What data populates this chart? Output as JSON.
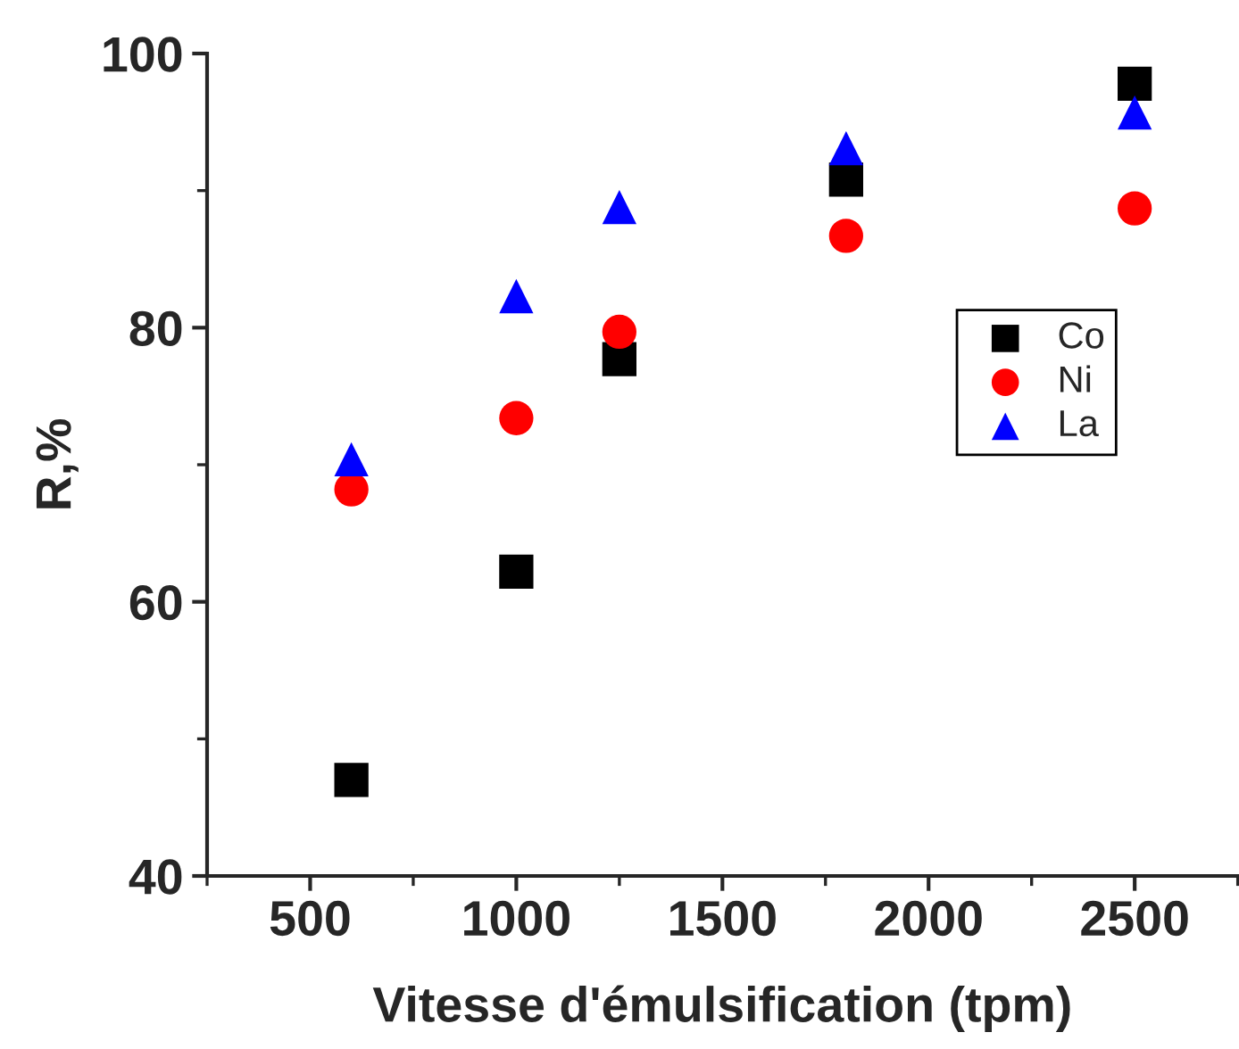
{
  "chart_data": {
    "type": "scatter",
    "xlabel": "Vitesse d'émulsification (tpm)",
    "ylabel": "R,%",
    "x": [
      600,
      1000,
      1250,
      1800,
      2500
    ],
    "series": [
      {
        "name": "Co",
        "color": "#000000",
        "marker": "square",
        "values": [
          47.0,
          62.2,
          77.7,
          90.8,
          97.8
        ]
      },
      {
        "name": "Ni",
        "color": "#ff0000",
        "marker": "circle",
        "values": [
          68.2,
          73.4,
          79.7,
          86.7,
          88.7
        ]
      },
      {
        "name": "La",
        "color": "#0000ff",
        "marker": "triangle",
        "values": [
          70.4,
          82.3,
          88.8,
          93.1,
          95.7
        ]
      }
    ],
    "xlim": [
      250,
      2750
    ],
    "xticks": [
      500,
      1000,
      1500,
      2000,
      2500
    ],
    "ylim": [
      40,
      100
    ],
    "yticks": [
      40,
      60,
      80,
      100
    ],
    "grid": false,
    "legend": "right"
  }
}
